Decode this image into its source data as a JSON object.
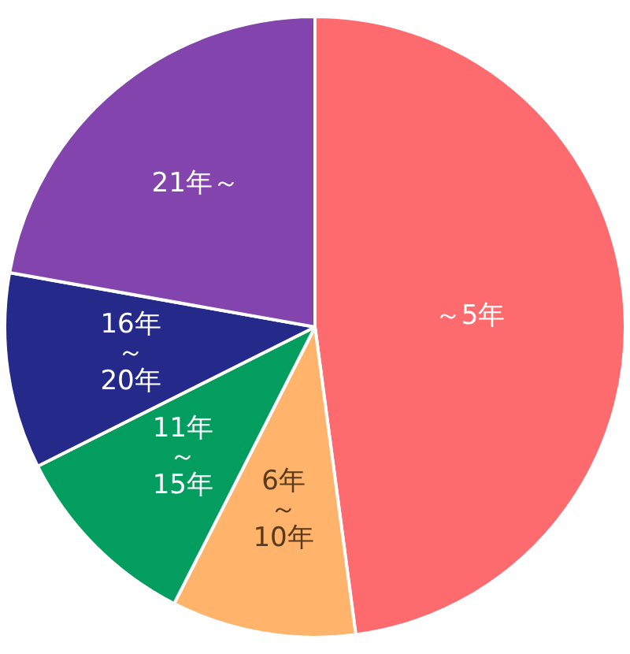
{
  "chart_data": {
    "type": "pie",
    "categories": [
      "～5年",
      "6年～10年",
      "11年～15年",
      "16年～20年",
      "21年～"
    ],
    "values": [
      47.9,
      9.6,
      10.1,
      10.2,
      22.2
    ],
    "colors": [
      "#fe6b6f",
      "#ffb36b",
      "#049d60",
      "#252a8a",
      "#8444ad"
    ],
    "data_labels": false,
    "legend": false
  }
}
